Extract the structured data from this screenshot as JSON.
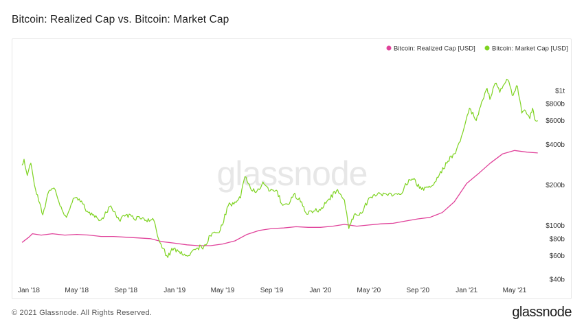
{
  "header": {
    "title": "Bitcoin: Realized Cap vs. Bitcoin: Market Cap"
  },
  "footer": {
    "copyright": "© 2021 Glassnode. All Rights Reserved.",
    "brand": "glassnode"
  },
  "watermark": "glassnode",
  "colors": {
    "realized": "#e0429a",
    "market": "#7ed321",
    "axis": "#333333",
    "frame": "#e6e6e6"
  },
  "chart_data": {
    "type": "line",
    "title": "Bitcoin: Realized Cap vs. Bitcoin: Market Cap",
    "y_scale": "log",
    "ylim": [
      "$40b",
      "$1t"
    ],
    "y_ticks": [
      {
        "label": "$40b",
        "value": 40
      },
      {
        "label": "$60b",
        "value": 60
      },
      {
        "label": "$80b",
        "value": 80
      },
      {
        "label": "$100b",
        "value": 100
      },
      {
        "label": "$200b",
        "value": 200
      },
      {
        "label": "$400b",
        "value": 400
      },
      {
        "label": "$600b",
        "value": 600
      },
      {
        "label": "$800b",
        "value": 800
      },
      {
        "label": "$1t",
        "value": 1000
      }
    ],
    "x_ticks": [
      {
        "label": "Jan '18",
        "date": "2018-01-01"
      },
      {
        "label": "May '18",
        "date": "2018-05-01"
      },
      {
        "label": "Sep '18",
        "date": "2018-09-01"
      },
      {
        "label": "Jan '19",
        "date": "2019-01-01"
      },
      {
        "label": "May '19",
        "date": "2019-05-01"
      },
      {
        "label": "Sep '19",
        "date": "2019-09-01"
      },
      {
        "label": "Jan '20",
        "date": "2020-01-01"
      },
      {
        "label": "May '20",
        "date": "2020-05-01"
      },
      {
        "label": "Sep '20",
        "date": "2020-09-01"
      },
      {
        "label": "Jan '21",
        "date": "2021-01-01"
      },
      {
        "label": "May '21",
        "date": "2021-05-01"
      }
    ],
    "x_range": [
      "2017-12-15",
      "2021-07-01"
    ],
    "legend_position": "top-right",
    "grid": false,
    "series": [
      {
        "name": "Bitcoin: Realized Cap [USD]",
        "color": "#e0429a",
        "points": [
          [
            "2017-12-15",
            75
          ],
          [
            "2018-01-01",
            82
          ],
          [
            "2018-01-10",
            87
          ],
          [
            "2018-02-01",
            85
          ],
          [
            "2018-03-01",
            87
          ],
          [
            "2018-04-01",
            85
          ],
          [
            "2018-05-01",
            86
          ],
          [
            "2018-06-01",
            85
          ],
          [
            "2018-07-01",
            83
          ],
          [
            "2018-08-01",
            83
          ],
          [
            "2018-09-01",
            82
          ],
          [
            "2018-10-01",
            81
          ],
          [
            "2018-11-01",
            80
          ],
          [
            "2018-12-01",
            76
          ],
          [
            "2019-01-01",
            74
          ],
          [
            "2019-02-01",
            72
          ],
          [
            "2019-03-01",
            71
          ],
          [
            "2019-04-01",
            71
          ],
          [
            "2019-05-01",
            73
          ],
          [
            "2019-06-01",
            77
          ],
          [
            "2019-07-01",
            86
          ],
          [
            "2019-08-01",
            92
          ],
          [
            "2019-09-01",
            95
          ],
          [
            "2019-10-01",
            96
          ],
          [
            "2019-11-01",
            98
          ],
          [
            "2019-12-01",
            97
          ],
          [
            "2020-01-01",
            97
          ],
          [
            "2020-02-01",
            99
          ],
          [
            "2020-03-01",
            102
          ],
          [
            "2020-04-01",
            99
          ],
          [
            "2020-05-01",
            101
          ],
          [
            "2020-06-01",
            103
          ],
          [
            "2020-07-01",
            104
          ],
          [
            "2020-08-01",
            108
          ],
          [
            "2020-09-01",
            112
          ],
          [
            "2020-10-01",
            115
          ],
          [
            "2020-11-01",
            125
          ],
          [
            "2020-12-01",
            150
          ],
          [
            "2021-01-01",
            205
          ],
          [
            "2021-02-01",
            245
          ],
          [
            "2021-03-01",
            290
          ],
          [
            "2021-04-01",
            340
          ],
          [
            "2021-05-01",
            360
          ],
          [
            "2021-06-01",
            350
          ],
          [
            "2021-06-28",
            345
          ]
        ]
      },
      {
        "name": "Bitcoin: Market Cap [USD]",
        "color": "#7ed321",
        "points": [
          [
            "2017-12-15",
            280
          ],
          [
            "2017-12-20",
            310
          ],
          [
            "2017-12-28",
            235
          ],
          [
            "2018-01-06",
            290
          ],
          [
            "2018-01-15",
            200
          ],
          [
            "2018-02-05",
            120
          ],
          [
            "2018-02-20",
            180
          ],
          [
            "2018-03-05",
            190
          ],
          [
            "2018-03-20",
            140
          ],
          [
            "2018-04-05",
            115
          ],
          [
            "2018-04-25",
            160
          ],
          [
            "2018-05-10",
            150
          ],
          [
            "2018-05-30",
            125
          ],
          [
            "2018-06-15",
            115
          ],
          [
            "2018-07-01",
            110
          ],
          [
            "2018-07-25",
            140
          ],
          [
            "2018-08-15",
            110
          ],
          [
            "2018-09-01",
            120
          ],
          [
            "2018-09-20",
            113
          ],
          [
            "2018-10-10",
            112
          ],
          [
            "2018-11-10",
            109
          ],
          [
            "2018-11-25",
            75
          ],
          [
            "2018-12-15",
            58
          ],
          [
            "2018-12-25",
            68
          ],
          [
            "2019-01-15",
            62
          ],
          [
            "2019-02-05",
            60
          ],
          [
            "2019-02-25",
            68
          ],
          [
            "2019-03-15",
            70
          ],
          [
            "2019-04-05",
            88
          ],
          [
            "2019-04-25",
            92
          ],
          [
            "2019-05-15",
            140
          ],
          [
            "2019-06-01",
            150
          ],
          [
            "2019-06-15",
            160
          ],
          [
            "2019-06-26",
            230
          ],
          [
            "2019-07-15",
            180
          ],
          [
            "2019-08-01",
            185
          ],
          [
            "2019-08-10",
            210
          ],
          [
            "2019-08-25",
            180
          ],
          [
            "2019-09-15",
            180
          ],
          [
            "2019-09-26",
            145
          ],
          [
            "2019-10-15",
            145
          ],
          [
            "2019-10-26",
            170
          ],
          [
            "2019-11-15",
            150
          ],
          [
            "2019-11-25",
            125
          ],
          [
            "2019-12-15",
            128
          ],
          [
            "2020-01-01",
            130
          ],
          [
            "2020-01-20",
            155
          ],
          [
            "2020-02-13",
            185
          ],
          [
            "2020-03-01",
            155
          ],
          [
            "2020-03-12",
            95
          ],
          [
            "2020-03-25",
            120
          ],
          [
            "2020-04-15",
            125
          ],
          [
            "2020-05-01",
            160
          ],
          [
            "2020-05-15",
            170
          ],
          [
            "2020-06-15",
            170
          ],
          [
            "2020-07-20",
            170
          ],
          [
            "2020-08-01",
            205
          ],
          [
            "2020-08-20",
            220
          ],
          [
            "2020-09-10",
            185
          ],
          [
            "2020-10-10",
            200
          ],
          [
            "2020-10-25",
            240
          ],
          [
            "2020-11-15",
            300
          ],
          [
            "2020-12-01",
            340
          ],
          [
            "2020-12-16",
            420
          ],
          [
            "2021-01-08",
            740
          ],
          [
            "2021-01-25",
            600
          ],
          [
            "2021-02-10",
            850
          ],
          [
            "2021-02-21",
            1040
          ],
          [
            "2021-02-28",
            860
          ],
          [
            "2021-03-13",
            1130
          ],
          [
            "2021-03-25",
            970
          ],
          [
            "2021-04-14",
            1200
          ],
          [
            "2021-04-25",
            920
          ],
          [
            "2021-05-08",
            1080
          ],
          [
            "2021-05-19",
            680
          ],
          [
            "2021-05-26",
            720
          ],
          [
            "2021-06-08",
            620
          ],
          [
            "2021-06-15",
            740
          ],
          [
            "2021-06-22",
            600
          ],
          [
            "2021-06-28",
            600
          ]
        ]
      }
    ]
  }
}
